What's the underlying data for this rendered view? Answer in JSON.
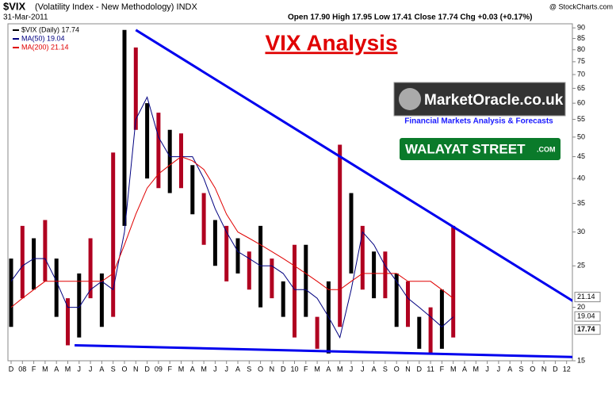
{
  "header": {
    "symbol": "$VIX",
    "description": "(Volatility Index - New Methodology) INDX",
    "date": "31-Mar-2011",
    "quote": "Open 17.90 High 17.95 Low 17.41 Close 17.74 Chg +0.03 (+0.17%)",
    "source": "@ StockCharts.com"
  },
  "logos": {
    "oracle": "MarketOracle.co.uk",
    "oracle_tagline": "Financial Markets Analysis & Forecasts",
    "walayat": "WALAYAT STREET",
    "walayat_suffix": ".COM"
  },
  "chart_data": {
    "type": "hilo",
    "title": "VIX Analysis",
    "categories": [
      "D",
      "08",
      "F",
      "M",
      "A",
      "M",
      "J",
      "J",
      "A",
      "S",
      "O",
      "N",
      "D",
      "09",
      "F",
      "M",
      "A",
      "M",
      "J",
      "J",
      "A",
      "S",
      "O",
      "N",
      "D",
      "10",
      "F",
      "M",
      "A",
      "M",
      "J",
      "J",
      "A",
      "S",
      "O",
      "N",
      "D",
      "11",
      "F",
      "M",
      "A",
      "M",
      "J",
      "J",
      "A",
      "S",
      "O",
      "N",
      "D",
      "12"
    ],
    "series": [
      {
        "name": "$VIX (Daily) 17.74",
        "color": "#000000",
        "field": "high",
        "values": [
          26,
          31,
          29,
          32,
          26,
          21,
          24,
          29,
          24,
          46,
          89,
          81,
          60,
          57,
          52,
          51,
          43,
          37,
          32,
          31,
          29,
          27,
          31,
          26,
          23,
          28,
          28,
          19,
          23,
          48,
          37,
          31,
          27,
          27,
          24,
          23,
          19,
          20,
          22,
          31,
          null,
          null,
          null,
          null,
          null,
          null,
          null,
          null,
          null,
          null
        ]
      },
      {
        "name": "$VIX (Daily) 17.74",
        "color": "#000000",
        "field": "low",
        "values": [
          18,
          21,
          22,
          23,
          19,
          16.3,
          17,
          21,
          18,
          19,
          31,
          52,
          40,
          38,
          37,
          38,
          33,
          28,
          25,
          23,
          24,
          22,
          20,
          21,
          19,
          17,
          19,
          16,
          15.6,
          18,
          24,
          22,
          21,
          21,
          18,
          18,
          16,
          15.5,
          16,
          17,
          null,
          null,
          null,
          null,
          null,
          null,
          null,
          null,
          null,
          null
        ]
      },
      {
        "name": "MA(50) 19.04",
        "color": "#000080",
        "values": [
          23,
          25,
          26,
          26,
          23,
          20,
          20,
          22,
          23,
          22,
          30,
          55,
          62,
          50,
          45,
          45,
          45,
          40,
          34,
          30,
          27,
          26,
          25,
          25,
          24,
          22,
          22,
          21,
          19,
          17,
          22,
          30,
          28,
          25,
          23,
          21,
          20,
          19,
          18,
          19,
          null,
          null,
          null,
          null,
          null,
          null,
          null,
          null,
          null,
          null
        ]
      },
      {
        "name": "MA(200) 21.14",
        "color": "#e00000",
        "values": [
          20,
          21,
          22,
          23,
          23,
          23,
          23,
          23,
          23,
          24,
          28,
          33,
          38,
          41,
          43,
          45,
          44,
          42,
          38,
          33,
          30,
          29,
          28,
          27,
          26,
          25,
          24,
          23,
          22,
          22,
          23,
          24,
          24,
          24,
          24,
          23,
          23,
          23,
          22,
          21,
          null,
          null,
          null,
          null,
          null,
          null,
          null,
          null,
          null,
          null
        ]
      }
    ],
    "last_values": [
      21.14,
      19.04,
      17.74
    ],
    "trendlines": [
      {
        "color": "#0000ee",
        "x": [
          11,
          49.8
        ],
        "values": [
          89,
          20.5
        ]
      },
      {
        "color": "#0000ee",
        "x": [
          5.6,
          49.8
        ],
        "values": [
          16.3,
          15.3
        ]
      }
    ],
    "log_scale": true,
    "grid": false,
    "ylim": [
      15,
      92
    ],
    "yticks": [
      15,
      20,
      25,
      30,
      35,
      40,
      45,
      50,
      55,
      60,
      65,
      70,
      75,
      80,
      85,
      90
    ]
  }
}
